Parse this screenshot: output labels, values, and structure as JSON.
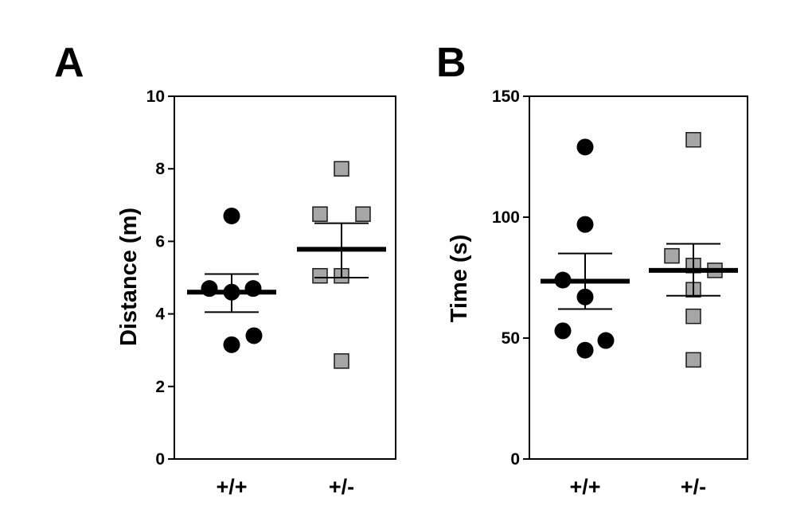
{
  "chart_data": [
    {
      "type": "scatter",
      "panel_label": "A",
      "title": "",
      "xlabel": "",
      "ylabel": "Distance (m)",
      "ylim": [
        0,
        10
      ],
      "yticks": [
        0,
        2,
        4,
        6,
        8,
        10
      ],
      "yticklabels": [
        "0",
        "2",
        "4",
        "6",
        "8",
        "10"
      ],
      "categories": [
        "+/+",
        "+/-"
      ],
      "grid": false,
      "legend": "none",
      "series": [
        {
          "category": "+/+",
          "marker": "circle",
          "color": "#000000",
          "values": [
            6.7,
            4.7,
            4.7,
            4.6,
            3.4,
            3.15
          ],
          "mean": 4.6,
          "sem_low": 4.05,
          "sem_high": 5.1
        },
        {
          "category": "+/-",
          "marker": "square",
          "color": "#a6a6a6",
          "values": [
            8.0,
            6.75,
            6.75,
            5.05,
            5.05,
            2.7
          ],
          "mean": 5.78,
          "sem_low": 5.0,
          "sem_high": 6.5
        }
      ]
    },
    {
      "type": "scatter",
      "panel_label": "B",
      "title": "",
      "xlabel": "",
      "ylabel": "Time (s)",
      "ylim": [
        0,
        150
      ],
      "yticks": [
        0,
        50,
        100,
        150
      ],
      "yticklabels": [
        "0",
        "50",
        "100",
        "150"
      ],
      "categories": [
        "+/+",
        "+/-"
      ],
      "grid": false,
      "legend": "none",
      "series": [
        {
          "category": "+/+",
          "marker": "circle",
          "color": "#000000",
          "values": [
            129,
            97,
            74,
            67,
            53,
            49,
            45
          ],
          "mean": 73.5,
          "sem_low": 62,
          "sem_high": 85
        },
        {
          "category": "+/-",
          "marker": "square",
          "color": "#a6a6a6",
          "values": [
            132,
            84,
            80,
            78,
            70,
            59,
            41
          ],
          "mean": 78,
          "sem_low": 67.5,
          "sem_high": 89
        }
      ]
    }
  ]
}
